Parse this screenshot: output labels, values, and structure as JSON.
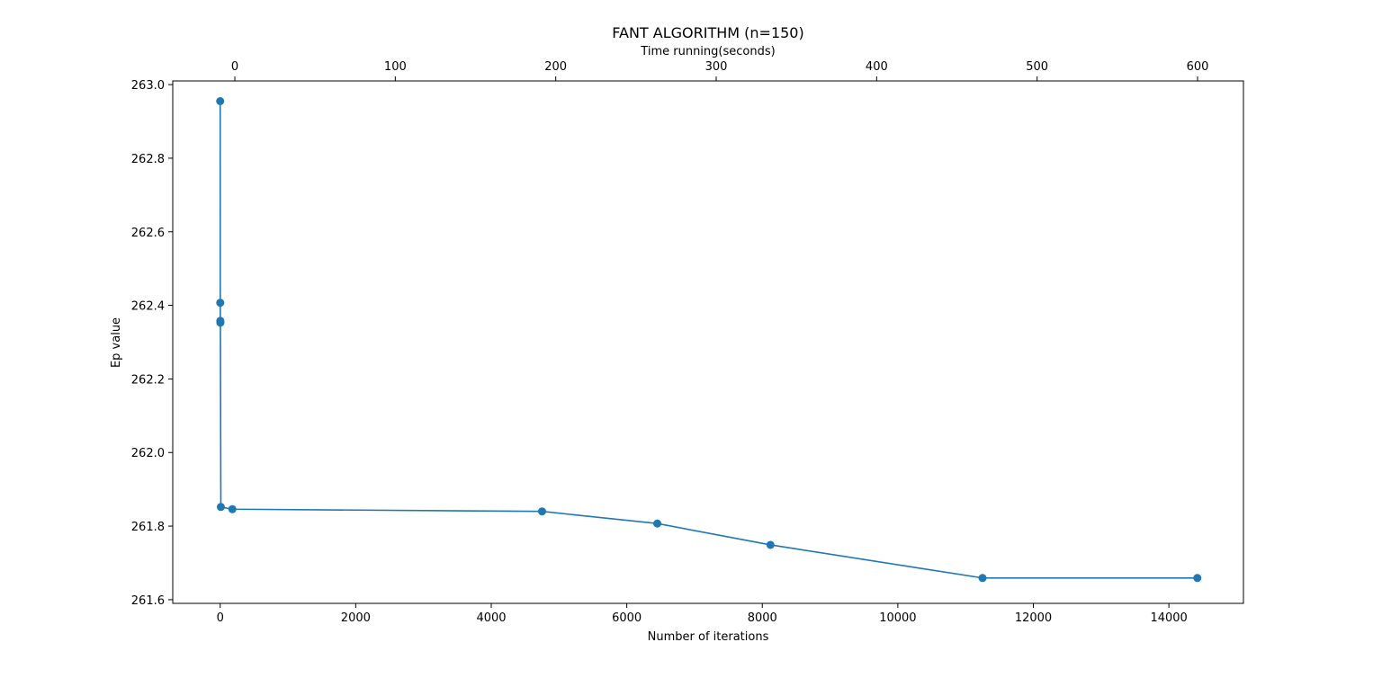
{
  "chart_data": {
    "type": "line",
    "title": "FANT ALGORITHM (n=150)",
    "xlabel": "Number of iterations",
    "ylabel": "Ep value",
    "top_xlabel": "Time running(seconds)",
    "xlim": [
      -700,
      15100
    ],
    "ylim": [
      261.59,
      263.01
    ],
    "top_xlim": [
      -38.7,
      628.6
    ],
    "x_ticks": [
      0,
      2000,
      4000,
      6000,
      8000,
      10000,
      12000,
      14000
    ],
    "x_tick_labels": [
      "0",
      "2000",
      "4000",
      "6000",
      "8000",
      "10000",
      "12000",
      "14000"
    ],
    "y_ticks": [
      261.6,
      261.8,
      262.0,
      262.2,
      262.4,
      262.6,
      262.8,
      263.0
    ],
    "y_tick_labels": [
      "261.6",
      "261.8",
      "262.0",
      "262.2",
      "262.4",
      "262.6",
      "262.8",
      "263.0"
    ],
    "top_x_ticks": [
      0,
      100,
      200,
      300,
      400,
      500,
      600
    ],
    "top_x_tick_labels": [
      "0",
      "100",
      "200",
      "300",
      "400",
      "500",
      "600"
    ],
    "grid": false,
    "series": [
      {
        "name": "Ep value",
        "color": "#1f77b4",
        "marker": "circle",
        "x": [
          0,
          1,
          2,
          3,
          10,
          180,
          4750,
          6450,
          8120,
          11250,
          14420
        ],
        "y": [
          262.955,
          262.407,
          262.358,
          262.353,
          261.852,
          261.846,
          261.84,
          261.807,
          261.749,
          261.659,
          261.659
        ]
      }
    ],
    "colors": {
      "line": "#1f77b4",
      "axis": "#000000",
      "background": "#ffffff"
    }
  }
}
